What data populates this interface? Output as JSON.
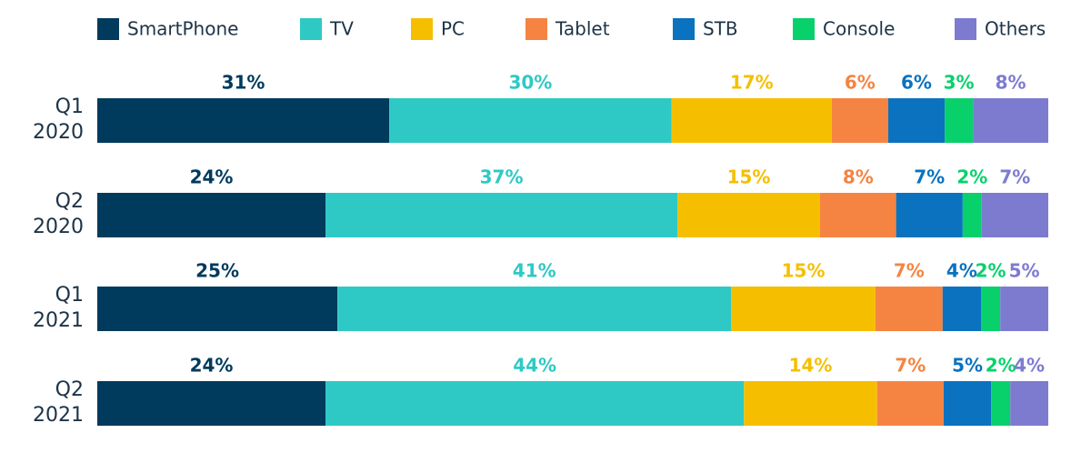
{
  "chart_data": {
    "type": "stacked-bar-100",
    "categories": [
      "Q1 2020",
      "Q2 2020",
      "Q1 2021",
      "Q2 2021"
    ],
    "series": [
      {
        "name": "SmartPhone",
        "color": "#003a5d",
        "values": [
          31,
          24,
          25,
          24
        ],
        "value_labels": [
          "31%",
          "24%",
          "25%",
          "24%"
        ]
      },
      {
        "name": "TV",
        "color": "#2ec9c5",
        "values": [
          30,
          37,
          41,
          44
        ],
        "value_labels": [
          "30%",
          "37%",
          "41%",
          "44%"
        ]
      },
      {
        "name": "PC",
        "color": "#f5bf00",
        "values": [
          17,
          15,
          15,
          14
        ],
        "value_labels": [
          "17%",
          "15%",
          "15%",
          "14%"
        ]
      },
      {
        "name": "Tablet",
        "color": "#f58442",
        "values": [
          6,
          8,
          7,
          7
        ],
        "value_labels": [
          "6%",
          "8%",
          "7%",
          "7%"
        ]
      },
      {
        "name": "STB",
        "color": "#0a72bf",
        "values": [
          6,
          7,
          4,
          5
        ],
        "value_labels": [
          "6%",
          "7%",
          "4%",
          "5%"
        ]
      },
      {
        "name": "Console",
        "color": "#08d16c",
        "values": [
          3,
          2,
          2,
          2
        ],
        "value_labels": [
          "3%",
          "2%",
          "2%",
          "2%"
        ]
      },
      {
        "name": "Others",
        "color": "#7d7bd0",
        "values": [
          8,
          7,
          5,
          4
        ],
        "value_labels": [
          "8%",
          "7%",
          "5%",
          "4%"
        ]
      }
    ]
  }
}
